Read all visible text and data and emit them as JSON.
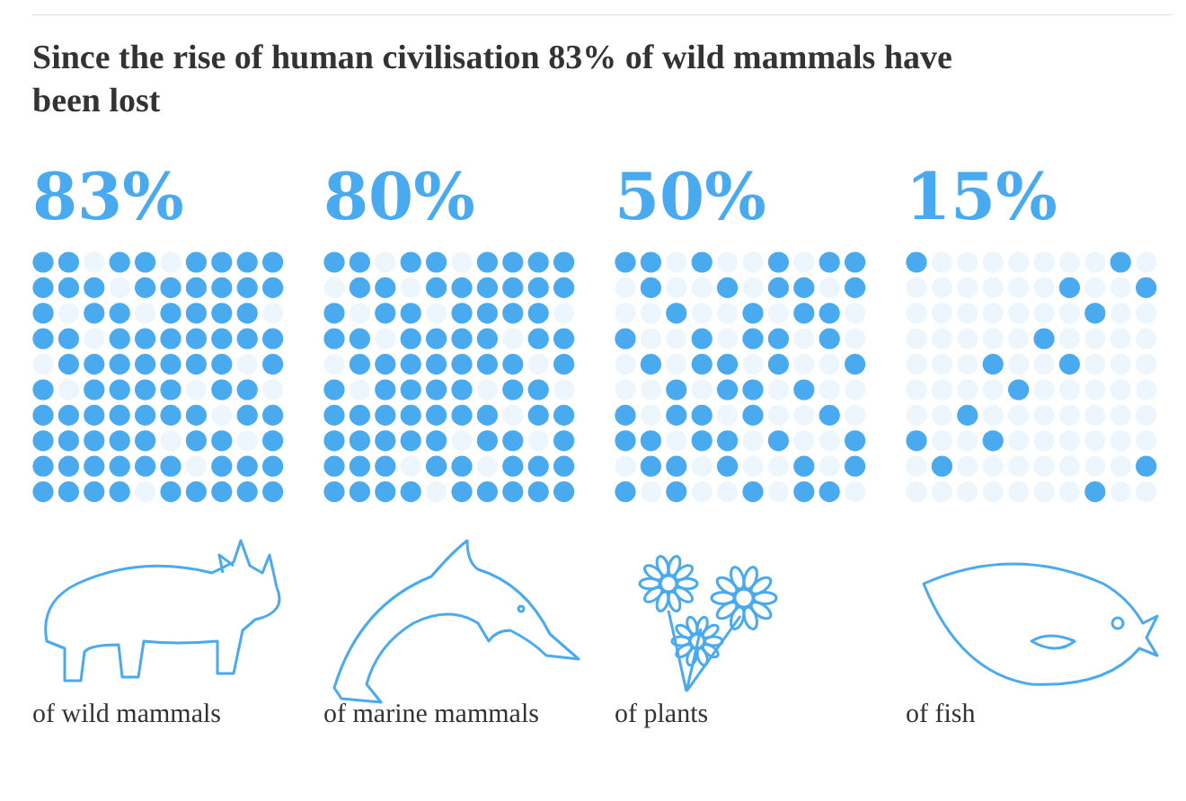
{
  "chart_data": {
    "type": "other",
    "title": "Since the rise of human civilisation 83% of wild mammals have been lost",
    "categories": [
      "of wild mammals",
      "of marine mammals",
      "of plants",
      "of fish"
    ],
    "values": [
      83,
      80,
      50,
      15
    ],
    "value_labels": [
      "83%",
      "80%",
      "50%",
      "15%"
    ],
    "color": "#4aaaf0"
  }
}
